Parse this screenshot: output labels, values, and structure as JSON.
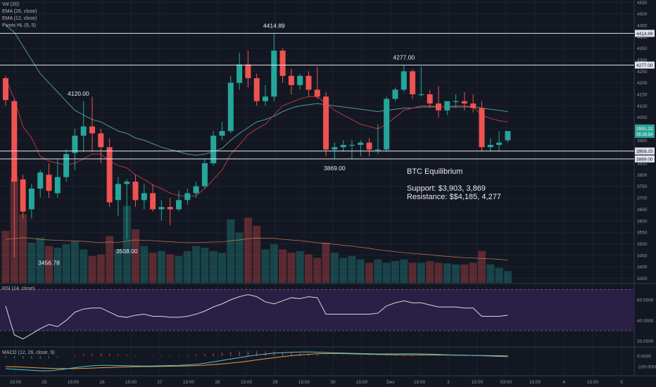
{
  "indicators": {
    "main": [
      "Vol (20)",
      "EMA (26, close)",
      "EMA (12, close)",
      "Pivots HL (5, 5)"
    ],
    "rsi": "RSI (14, close)",
    "macd": "MACD (12, 26, close, 9)"
  },
  "annotation": {
    "title": "BTC Equilibrium",
    "support": "Support: $3,903, 3,869",
    "resistance": "Resistance: $$4,185, 4,277"
  },
  "colors": {
    "background": "#131722",
    "up": "#26a69a",
    "down": "#ef5350",
    "ema_short": "#b23a3a",
    "ema_long": "#4e9a8f",
    "rsi_band": "#2a1f45",
    "rsi_line": "#d9d9d9",
    "macd_line": "#4fc3d7",
    "signal_line": "#e8a040"
  },
  "chart_data": [
    {
      "type": "candlestick",
      "y_axis_ticks": [
        3350,
        3400,
        3450,
        3500,
        3550,
        3600,
        3650,
        3700,
        3750,
        3800,
        3850,
        3900,
        3950,
        4000,
        4050,
        4100,
        4150,
        4200,
        4250,
        4300,
        4350,
        4400,
        4450,
        4500,
        4550
      ],
      "ylim": [
        3330,
        4560
      ],
      "x_tick_labels": [
        "15:00",
        "25",
        "15:00",
        "26",
        "15:00",
        "27",
        "15:00",
        "28",
        "15:00",
        "29",
        "15:00",
        "30",
        "15:00",
        "Dec",
        "15:00",
        "2",
        "15:00",
        "03:00",
        "15:00",
        "4",
        "15:00",
        "5"
      ],
      "pivot_labels": [
        "4414.89",
        "4277.00",
        "4120.00",
        "3869.00",
        "3508.00",
        "3456.78"
      ],
      "price_lines": [
        "4414.89",
        "4277.00",
        "3903.15",
        "3869.00"
      ],
      "last_price": "3991.22",
      "last_price_sub": "05:28:54",
      "candles": [
        {
          "o": 4220,
          "h": 4230,
          "c": 4125,
          "l": 4100
        },
        {
          "o": 4120,
          "h": 4130,
          "c": 3770,
          "l": 3440
        },
        {
          "o": 3780,
          "h": 3800,
          "c": 3640,
          "l": 3610
        },
        {
          "o": 3650,
          "h": 3760,
          "c": 3740,
          "l": 3610
        },
        {
          "o": 3740,
          "h": 3820,
          "c": 3810,
          "l": 3700
        },
        {
          "o": 3800,
          "h": 3850,
          "c": 3730,
          "l": 3700
        },
        {
          "o": 3720,
          "h": 3870,
          "c": 3790,
          "l": 3700
        },
        {
          "o": 3790,
          "h": 3910,
          "c": 3890,
          "l": 3770
        },
        {
          "o": 3895,
          "h": 4000,
          "c": 3970,
          "l": 3820
        },
        {
          "o": 3970,
          "h": 4120,
          "c": 4010,
          "l": 3900
        },
        {
          "o": 4010,
          "h": 4140,
          "c": 3980,
          "l": 3900
        },
        {
          "o": 3980,
          "h": 4000,
          "c": 3920,
          "l": 3850
        },
        {
          "o": 3920,
          "h": 3960,
          "c": 3680,
          "l": 3660
        },
        {
          "o": 3690,
          "h": 3790,
          "c": 3760,
          "l": 3620
        },
        {
          "o": 3760,
          "h": 3780,
          "c": 3770,
          "l": 3520
        },
        {
          "o": 3770,
          "h": 3800,
          "c": 3690,
          "l": 3660
        },
        {
          "o": 3690,
          "h": 3760,
          "c": 3720,
          "l": 3650
        },
        {
          "o": 3720,
          "h": 3760,
          "c": 3650,
          "l": 3640
        },
        {
          "o": 3650,
          "h": 3690,
          "c": 3660,
          "l": 3600
        },
        {
          "o": 3660,
          "h": 3700,
          "c": 3650,
          "l": 3580
        },
        {
          "o": 3650,
          "h": 3730,
          "c": 3690,
          "l": 3640
        },
        {
          "o": 3690,
          "h": 3740,
          "c": 3720,
          "l": 3670
        },
        {
          "o": 3720,
          "h": 3770,
          "c": 3750,
          "l": 3700
        },
        {
          "o": 3750,
          "h": 3870,
          "c": 3850,
          "l": 3740
        },
        {
          "o": 3850,
          "h": 3990,
          "c": 3970,
          "l": 3840
        },
        {
          "o": 3970,
          "h": 4030,
          "c": 3990,
          "l": 3950
        },
        {
          "o": 3990,
          "h": 4230,
          "c": 4200,
          "l": 3980
        },
        {
          "o": 4200,
          "h": 4330,
          "c": 4280,
          "l": 4170
        },
        {
          "o": 4280,
          "h": 4340,
          "c": 4220,
          "l": 4180
        },
        {
          "o": 4220,
          "h": 4240,
          "c": 4120,
          "l": 4100
        },
        {
          "o": 4120,
          "h": 4190,
          "c": 4140,
          "l": 4100
        },
        {
          "o": 4140,
          "h": 4415,
          "c": 4340,
          "l": 4120
        },
        {
          "o": 4340,
          "h": 4350,
          "c": 4230,
          "l": 4200
        },
        {
          "o": 4230,
          "h": 4260,
          "c": 4190,
          "l": 4150
        },
        {
          "o": 4190,
          "h": 4240,
          "c": 4230,
          "l": 4170
        },
        {
          "o": 4230,
          "h": 4250,
          "c": 4170,
          "l": 4140
        },
        {
          "o": 4170,
          "h": 4270,
          "c": 4140,
          "l": 4130
        },
        {
          "o": 4140,
          "h": 4160,
          "c": 3910,
          "l": 3880
        },
        {
          "o": 3910,
          "h": 3940,
          "c": 3920,
          "l": 3869
        },
        {
          "o": 3920,
          "h": 3950,
          "c": 3930,
          "l": 3900
        },
        {
          "o": 3930,
          "h": 3950,
          "c": 3930,
          "l": 3870
        },
        {
          "o": 3930,
          "h": 3950,
          "c": 3940,
          "l": 3880
        },
        {
          "o": 3940,
          "h": 3960,
          "c": 3910,
          "l": 3880
        },
        {
          "o": 3910,
          "h": 4020,
          "c": 3910,
          "l": 3890
        },
        {
          "o": 3910,
          "h": 4140,
          "c": 4130,
          "l": 3900
        },
        {
          "o": 4130,
          "h": 4180,
          "c": 4170,
          "l": 4120
        },
        {
          "o": 4170,
          "h": 4277,
          "c": 4250,
          "l": 4160
        },
        {
          "o": 4250,
          "h": 4260,
          "c": 4150,
          "l": 4130
        },
        {
          "o": 4150,
          "h": 4270,
          "c": 4150,
          "l": 4140
        },
        {
          "o": 4150,
          "h": 4170,
          "c": 4110,
          "l": 4090
        },
        {
          "o": 4110,
          "h": 4185,
          "c": 4080,
          "l": 4050
        },
        {
          "o": 4080,
          "h": 4110,
          "c": 4120,
          "l": 4060
        },
        {
          "o": 4120,
          "h": 4150,
          "c": 4120,
          "l": 4090
        },
        {
          "o": 4120,
          "h": 4160,
          "c": 4110,
          "l": 4080
        },
        {
          "o": 4110,
          "h": 4150,
          "c": 4090,
          "l": 4070
        },
        {
          "o": 4090,
          "h": 4120,
          "c": 3920,
          "l": 3900
        },
        {
          "o": 3920,
          "h": 3960,
          "c": 3930,
          "l": 3900
        },
        {
          "o": 3930,
          "h": 3990,
          "c": 3940,
          "l": 3900
        },
        {
          "o": 3950,
          "h": 3990,
          "c": 3990,
          "l": 3940
        }
      ],
      "volume": [
        155,
        315,
        205,
        120,
        135,
        110,
        105,
        115,
        125,
        100,
        80,
        85,
        140,
        100,
        230,
        160,
        110,
        90,
        95,
        85,
        80,
        95,
        110,
        105,
        95,
        90,
        190,
        150,
        195,
        170,
        100,
        115,
        100,
        90,
        95,
        85,
        75,
        120,
        90,
        75,
        80,
        70,
        60,
        70,
        60,
        65,
        70,
        60,
        60,
        65,
        60,
        58,
        55,
        55,
        60,
        95,
        55,
        45,
        35
      ],
      "ema12": [
        4220,
        4130,
        4010,
        3960,
        3880,
        3860,
        3850,
        3842,
        3850,
        3870,
        3890,
        3890,
        3860,
        3840,
        3830,
        3800,
        3780,
        3755,
        3740,
        3720,
        3710,
        3705,
        3710,
        3740,
        3780,
        3820,
        3890,
        3930,
        3975,
        4000,
        4020,
        4060,
        4100,
        4115,
        4130,
        4140,
        4140,
        4110,
        4080,
        4060,
        4040,
        4020,
        4010,
        4000,
        4020,
        4050,
        4080,
        4090,
        4100,
        4100,
        4095,
        4095,
        4100,
        4100,
        4095,
        4060,
        4045,
        4035,
        4030
      ],
      "ema26": [
        4450,
        4420,
        4360,
        4300,
        4240,
        4200,
        4160,
        4120,
        4080,
        4060,
        4040,
        4030,
        4010,
        3990,
        3980,
        3960,
        3950,
        3935,
        3920,
        3910,
        3900,
        3890,
        3885,
        3890,
        3900,
        3915,
        3950,
        3980,
        4005,
        4030,
        4040,
        4055,
        4075,
        4090,
        4100,
        4105,
        4110,
        4105,
        4100,
        4095,
        4090,
        4085,
        4080,
        4075,
        4080,
        4085,
        4090,
        4090,
        4095,
        4095,
        4095,
        4095,
        4095,
        4095,
        4095,
        4090,
        4085,
        4080,
        4075
      ],
      "volume_ma": [
        130,
        132,
        135,
        133,
        130,
        128,
        127,
        126,
        125,
        124,
        122,
        120,
        122,
        121,
        125,
        128,
        127,
        126,
        124,
        123,
        121,
        120,
        120,
        121,
        122,
        122,
        126,
        128,
        132,
        134,
        133,
        133,
        130,
        128,
        126,
        123,
        120,
        118,
        115,
        112,
        110,
        106,
        103,
        99,
        96,
        93,
        90,
        88,
        86,
        84,
        81,
        79,
        77,
        75,
        74,
        73,
        72,
        70,
        68
      ]
    },
    {
      "type": "line",
      "name": "RSI (14, close)",
      "y_ticks": [
        "20.0000",
        "40.0000",
        "60.0000"
      ],
      "ylim": [
        15,
        75
      ],
      "values": [
        54,
        26,
        22,
        27,
        32,
        36,
        34,
        40,
        48,
        51,
        52,
        52,
        48,
        44,
        43,
        45,
        46,
        44,
        44,
        43,
        43,
        44,
        46,
        49,
        53,
        56,
        60,
        63,
        65,
        63,
        58,
        56,
        59,
        62,
        61,
        63,
        62,
        46,
        46,
        46,
        46,
        46,
        46,
        47,
        54,
        57,
        59,
        57,
        57,
        55,
        53,
        53,
        53,
        52,
        52,
        44,
        44,
        44,
        45
      ]
    },
    {
      "type": "line",
      "name": "MACD (12, 26, close, 9)",
      "y_ticks": [
        "0.0000",
        "-100.0000"
      ],
      "ylim": [
        -180,
        80
      ],
      "macd": [
        -120,
        -125,
        -130,
        -135,
        -140,
        -140,
        -132,
        -122,
        -110,
        -100,
        -92,
        -88,
        -88,
        -90,
        -92,
        -93,
        -95,
        -94,
        -92,
        -90,
        -88,
        -84,
        -78,
        -68,
        -55,
        -42,
        -28,
        -15,
        -2,
        10,
        18,
        28,
        32,
        36,
        38,
        39,
        37,
        33,
        30,
        28,
        26,
        24,
        22,
        20,
        20,
        20,
        22,
        22,
        20,
        18,
        15,
        12,
        10,
        8,
        6,
        3,
        0,
        -3,
        -5
      ],
      "signal": [
        -100,
        -102,
        -105,
        -109,
        -113,
        -116,
        -118,
        -119,
        -119,
        -117,
        -114,
        -111,
        -108,
        -105,
        -103,
        -101,
        -100,
        -99,
        -98,
        -97,
        -95,
        -93,
        -91,
        -87,
        -81,
        -75,
        -67,
        -58,
        -48,
        -37,
        -26,
        -16,
        -6,
        3,
        11,
        17,
        22,
        24,
        24,
        23,
        21,
        19,
        17,
        15,
        13,
        12,
        11,
        11,
        11,
        11,
        10,
        9,
        8,
        7,
        6,
        5,
        4,
        3,
        1
      ],
      "histogram": [
        -20,
        -23,
        -25,
        -26,
        -27,
        -24,
        -14,
        -3,
        9,
        17,
        22,
        23,
        20,
        15,
        11,
        8,
        5,
        5,
        6,
        7,
        7,
        9,
        13,
        19,
        26,
        33,
        39,
        43,
        46,
        47,
        44,
        44,
        38,
        33,
        27,
        22,
        15,
        9,
        6,
        5,
        5,
        5,
        5,
        5,
        7,
        8,
        11,
        11,
        9,
        7,
        5,
        3,
        2,
        1,
        0,
        -2,
        -4,
        -6,
        -6
      ],
      "x_tick_labels": [
        "15:00",
        "25",
        "15:00",
        "26",
        "15:00",
        "27",
        "15:00",
        "28",
        "15:00",
        "29",
        "15:00",
        "30",
        "15:00",
        "Dec",
        "15:00",
        "2",
        "15:00",
        "03:00",
        "15:00",
        "4",
        "15:00",
        "5"
      ]
    }
  ]
}
